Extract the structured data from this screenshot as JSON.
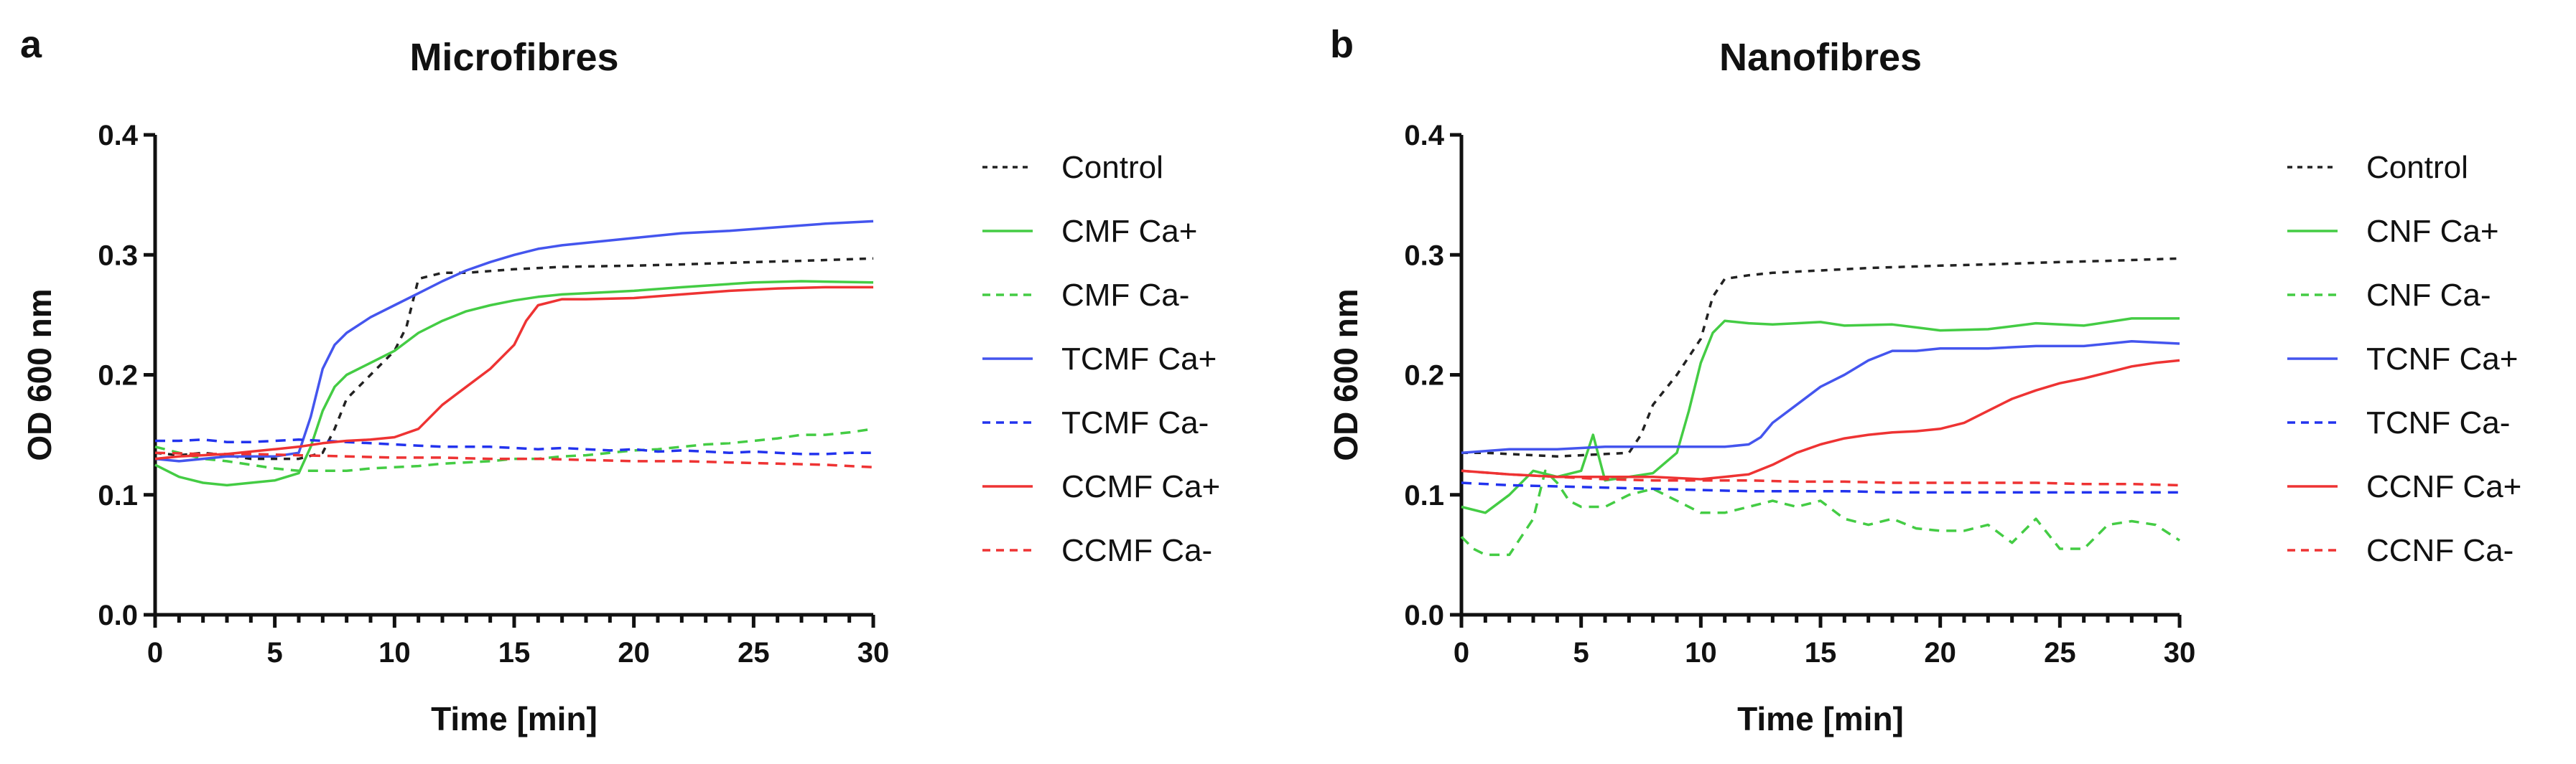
{
  "panels": [
    {
      "letter": "a",
      "chart_data": {
        "type": "line",
        "title": "Microfibres",
        "xlabel": "Time [min]",
        "ylabel": "OD 600 nm",
        "xlim": [
          0,
          30
        ],
        "ylim": [
          0,
          0.4
        ],
        "xticks": [
          "0",
          "5",
          "10",
          "15",
          "20",
          "25",
          "30"
        ],
        "yticks": [
          "0.0",
          "0.1",
          "0.2",
          "0.3",
          "0.4"
        ],
        "grid": false,
        "legend": "right",
        "series": [
          {
            "name": "Control",
            "color": "#222222",
            "dash": "dotted",
            "x": [
              0,
              1,
              2,
              3,
              4,
              5,
              6,
              7,
              7.5,
              8,
              9,
              10,
              10.5,
              11,
              12,
              13,
              15,
              17,
              20,
              22,
              25,
              27,
              30
            ],
            "y": [
              0.135,
              0.133,
              0.135,
              0.133,
              0.13,
              0.13,
              0.13,
              0.135,
              0.155,
              0.18,
              0.2,
              0.22,
              0.24,
              0.28,
              0.285,
              0.285,
              0.288,
              0.29,
              0.291,
              0.292,
              0.294,
              0.295,
              0.297
            ]
          },
          {
            "name": "CMF Ca+",
            "color": "#44cc44",
            "dash": "solid",
            "x": [
              0,
              1,
              2,
              3,
              4,
              5,
              6,
              6.5,
              7,
              7.5,
              8,
              9,
              10,
              11,
              12,
              13,
              14,
              15,
              16,
              17,
              18,
              20,
              22,
              25,
              27,
              30
            ],
            "y": [
              0.125,
              0.115,
              0.11,
              0.108,
              0.11,
              0.112,
              0.118,
              0.14,
              0.17,
              0.19,
              0.2,
              0.21,
              0.22,
              0.235,
              0.245,
              0.253,
              0.258,
              0.262,
              0.265,
              0.267,
              0.268,
              0.27,
              0.273,
              0.277,
              0.278,
              0.277
            ]
          },
          {
            "name": "CMF Ca-",
            "color": "#44cc44",
            "dash": "dashed",
            "x": [
              0,
              1,
              2,
              3,
              4,
              5,
              6,
              7,
              8,
              9,
              10,
              11,
              12,
              13,
              14,
              15,
              16,
              17,
              18,
              19,
              20,
              21,
              22,
              23,
              24,
              25,
              26,
              27,
              28,
              29,
              30
            ],
            "y": [
              0.14,
              0.135,
              0.13,
              0.128,
              0.125,
              0.122,
              0.12,
              0.12,
              0.12,
              0.122,
              0.123,
              0.124,
              0.126,
              0.127,
              0.128,
              0.13,
              0.13,
              0.132,
              0.133,
              0.135,
              0.137,
              0.138,
              0.14,
              0.142,
              0.143,
              0.145,
              0.147,
              0.15,
              0.15,
              0.152,
              0.155
            ]
          },
          {
            "name": "TCMF Ca+",
            "color": "#4455ee",
            "dash": "solid",
            "x": [
              0,
              1,
              2,
              3,
              4,
              5,
              6,
              6.5,
              7,
              7.5,
              8,
              9,
              10,
              11,
              12,
              13,
              14,
              15,
              16,
              17,
              18,
              20,
              22,
              24,
              26,
              28,
              30
            ],
            "y": [
              0.13,
              0.128,
              0.13,
              0.132,
              0.132,
              0.132,
              0.135,
              0.165,
              0.205,
              0.225,
              0.235,
              0.248,
              0.258,
              0.268,
              0.278,
              0.287,
              0.294,
              0.3,
              0.305,
              0.308,
              0.31,
              0.314,
              0.318,
              0.32,
              0.323,
              0.326,
              0.328
            ]
          },
          {
            "name": "TCMF Ca-",
            "color": "#2233ee",
            "dash": "dashed",
            "x": [
              0,
              1,
              2,
              3,
              4,
              5,
              6,
              7,
              8,
              9,
              10,
              11,
              12,
              13,
              14,
              15,
              16,
              17,
              18,
              19,
              20,
              21,
              22,
              23,
              24,
              25,
              26,
              27,
              28,
              29,
              30
            ],
            "y": [
              0.145,
              0.145,
              0.146,
              0.144,
              0.144,
              0.145,
              0.146,
              0.145,
              0.144,
              0.143,
              0.142,
              0.141,
              0.14,
              0.14,
              0.14,
              0.139,
              0.138,
              0.139,
              0.138,
              0.137,
              0.138,
              0.136,
              0.137,
              0.136,
              0.135,
              0.136,
              0.135,
              0.134,
              0.134,
              0.135,
              0.135
            ]
          },
          {
            "name": "CCMF Ca+",
            "color": "#ee3333",
            "dash": "solid",
            "x": [
              0,
              1,
              2,
              3,
              4,
              5,
              6,
              7,
              8,
              9,
              10,
              11,
              12,
              13,
              14,
              15,
              15.5,
              16,
              17,
              18,
              20,
              22,
              24,
              26,
              28,
              30
            ],
            "y": [
              0.13,
              0.132,
              0.133,
              0.134,
              0.136,
              0.138,
              0.14,
              0.143,
              0.145,
              0.146,
              0.148,
              0.155,
              0.175,
              0.19,
              0.205,
              0.225,
              0.245,
              0.258,
              0.263,
              0.263,
              0.264,
              0.267,
              0.27,
              0.272,
              0.273,
              0.273
            ]
          },
          {
            "name": "CCMF Ca-",
            "color": "#ee3333",
            "dash": "dashed",
            "x": [
              0,
              2,
              4,
              6,
              8,
              10,
              12,
              14,
              16,
              18,
              20,
              22,
              24,
              26,
              28,
              30
            ],
            "y": [
              0.135,
              0.134,
              0.134,
              0.133,
              0.132,
              0.131,
              0.131,
              0.13,
              0.13,
              0.129,
              0.128,
              0.128,
              0.127,
              0.126,
              0.125,
              0.123
            ]
          }
        ]
      }
    },
    {
      "letter": "b",
      "chart_data": {
        "type": "line",
        "title": "Nanofibres",
        "xlabel": "Time [min]",
        "ylabel": "OD 600 nm",
        "xlim": [
          0,
          30
        ],
        "ylim": [
          0,
          0.4
        ],
        "xticks": [
          "0",
          "5",
          "10",
          "15",
          "20",
          "25",
          "30"
        ],
        "yticks": [
          "0.0",
          "0.1",
          "0.2",
          "0.3",
          "0.4"
        ],
        "grid": false,
        "legend": "right",
        "series": [
          {
            "name": "Control",
            "color": "#222222",
            "dash": "dotted",
            "x": [
              0,
              1,
              2,
              3,
              4,
              5,
              6,
              7,
              7.5,
              8,
              9,
              10,
              10.5,
              11,
              12,
              13,
              15,
              17,
              20,
              22,
              25,
              27,
              30
            ],
            "y": [
              0.135,
              0.135,
              0.134,
              0.133,
              0.132,
              0.133,
              0.134,
              0.135,
              0.15,
              0.175,
              0.2,
              0.23,
              0.265,
              0.28,
              0.283,
              0.285,
              0.287,
              0.289,
              0.291,
              0.292,
              0.294,
              0.295,
              0.297
            ]
          },
          {
            "name": "CNF Ca+",
            "color": "#44cc44",
            "dash": "solid",
            "x": [
              0,
              1,
              2,
              3,
              4,
              5,
              5.5,
              6,
              7,
              8,
              9,
              9.5,
              10,
              10.5,
              11,
              12,
              13,
              14,
              15,
              16,
              18,
              20,
              22,
              24,
              26,
              28,
              30
            ],
            "y": [
              0.09,
              0.085,
              0.1,
              0.12,
              0.115,
              0.12,
              0.15,
              0.112,
              0.115,
              0.118,
              0.135,
              0.17,
              0.21,
              0.235,
              0.245,
              0.243,
              0.242,
              0.243,
              0.244,
              0.241,
              0.242,
              0.237,
              0.238,
              0.243,
              0.241,
              0.247,
              0.247
            ]
          },
          {
            "name": "CNF Ca-",
            "color": "#44cc44",
            "dash": "dashed",
            "x": [
              0,
              0.5,
              1,
              2,
              3,
              3.5,
              4,
              4.5,
              5,
              6,
              7,
              8,
              9,
              10,
              11,
              12,
              13,
              14,
              15,
              16,
              17,
              18,
              19,
              20,
              21,
              22,
              23,
              24,
              25,
              26,
              27,
              28,
              29,
              30
            ],
            "y": [
              0.065,
              0.055,
              0.05,
              0.05,
              0.08,
              0.12,
              0.11,
              0.095,
              0.09,
              0.09,
              0.1,
              0.105,
              0.095,
              0.085,
              0.085,
              0.09,
              0.095,
              0.09,
              0.095,
              0.08,
              0.075,
              0.08,
              0.072,
              0.07,
              0.07,
              0.075,
              0.06,
              0.08,
              0.055,
              0.055,
              0.075,
              0.078,
              0.075,
              0.062
            ]
          },
          {
            "name": "TCNF Ca+",
            "color": "#4455ee",
            "dash": "solid",
            "x": [
              0,
              2,
              4,
              6,
              8,
              10,
              11,
              12,
              12.5,
              13,
              14,
              15,
              16,
              17,
              18,
              19,
              20,
              22,
              24,
              26,
              28,
              30
            ],
            "y": [
              0.135,
              0.138,
              0.138,
              0.14,
              0.14,
              0.14,
              0.14,
              0.142,
              0.148,
              0.16,
              0.175,
              0.19,
              0.2,
              0.212,
              0.22,
              0.22,
              0.222,
              0.222,
              0.224,
              0.224,
              0.228,
              0.226
            ]
          },
          {
            "name": "TCNF Ca-",
            "color": "#2233ee",
            "dash": "dashed",
            "x": [
              0,
              2,
              4,
              6,
              8,
              10,
              12,
              14,
              16,
              18,
              20,
              22,
              24,
              26,
              28,
              30
            ],
            "y": [
              0.11,
              0.108,
              0.107,
              0.106,
              0.105,
              0.104,
              0.103,
              0.103,
              0.103,
              0.102,
              0.102,
              0.102,
              0.102,
              0.102,
              0.102,
              0.102
            ]
          },
          {
            "name": "CCNF Ca+",
            "color": "#ee3333",
            "dash": "solid",
            "x": [
              0,
              2,
              4,
              6,
              8,
              10,
              11,
              12,
              13,
              14,
              15,
              16,
              17,
              18,
              19,
              20,
              21,
              22,
              23,
              24,
              25,
              26,
              27,
              28,
              29,
              30
            ],
            "y": [
              0.12,
              0.117,
              0.115,
              0.115,
              0.115,
              0.113,
              0.115,
              0.117,
              0.125,
              0.135,
              0.142,
              0.147,
              0.15,
              0.152,
              0.153,
              0.155,
              0.16,
              0.17,
              0.18,
              0.187,
              0.193,
              0.197,
              0.202,
              0.207,
              0.21,
              0.212
            ]
          },
          {
            "name": "CCNF Ca-",
            "color": "#ee3333",
            "dash": "dashed",
            "x": [
              0,
              2,
              4,
              6,
              8,
              10,
              12,
              14,
              16,
              18,
              20,
              22,
              24,
              26,
              28,
              30
            ],
            "y": [
              0.12,
              0.117,
              0.115,
              0.113,
              0.112,
              0.112,
              0.112,
              0.111,
              0.111,
              0.11,
              0.11,
              0.11,
              0.11,
              0.109,
              0.109,
              0.108
            ]
          }
        ]
      }
    }
  ]
}
